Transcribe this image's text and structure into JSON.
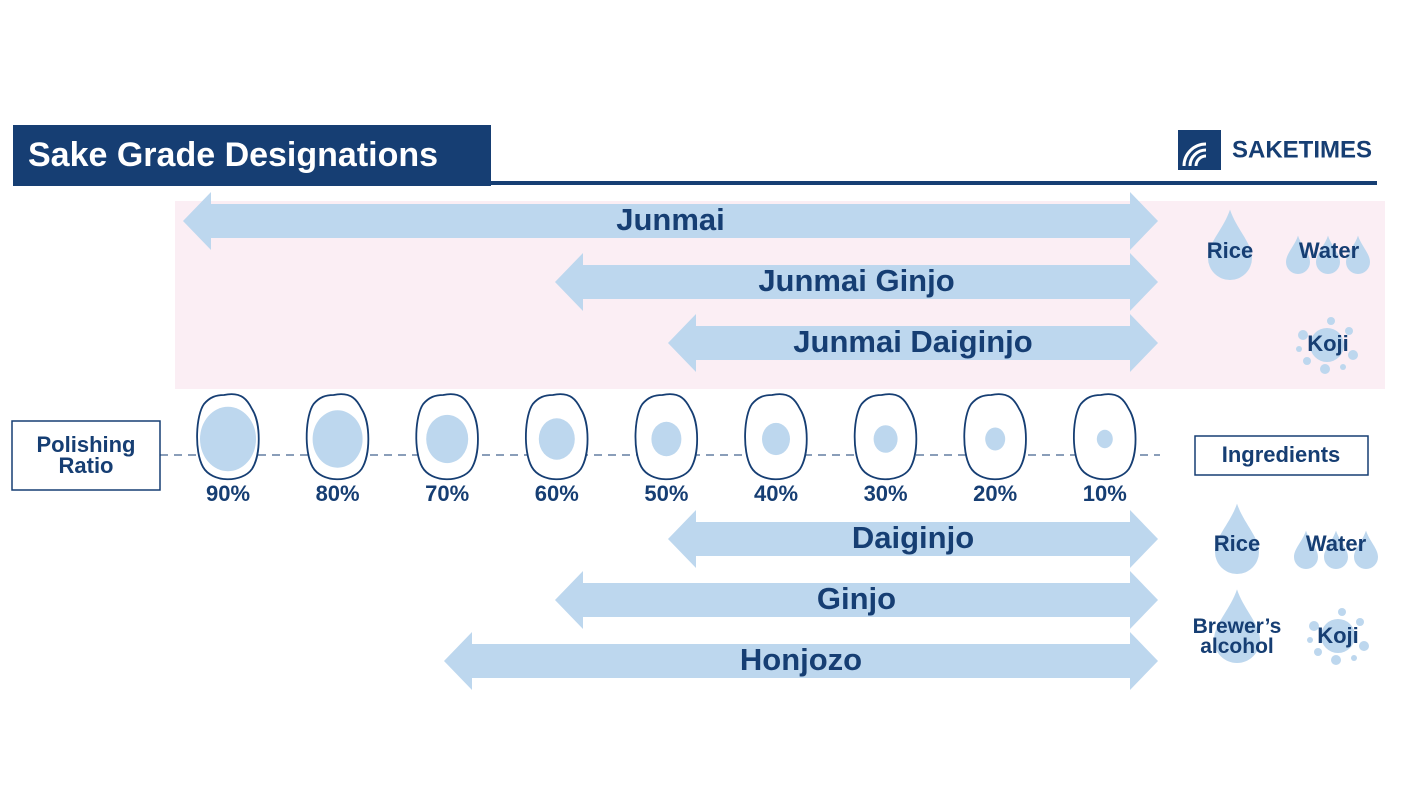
{
  "header": {
    "title": "Sake Grade Designations",
    "brand": "SAKETIMES"
  },
  "junmai_grades": [
    "Junmai",
    "Junmai Ginjo",
    "Junmai Daiginjo"
  ],
  "polishing_ratio": {
    "label": "Polishing Ratio",
    "ratios": [
      "90%",
      "80%",
      "70%",
      "60%",
      "50%",
      "40%",
      "30%",
      "20%",
      "10%"
    ]
  },
  "other_grades": [
    "Daiginjo",
    "Ginjo",
    "Honjozo"
  ],
  "ingredients": {
    "label": "Ingredients",
    "junmai": [
      "Rice",
      "Water",
      "Koji"
    ],
    "other": [
      "Rice",
      "Water",
      "Brewer’s alcohol",
      "Koji"
    ]
  }
}
